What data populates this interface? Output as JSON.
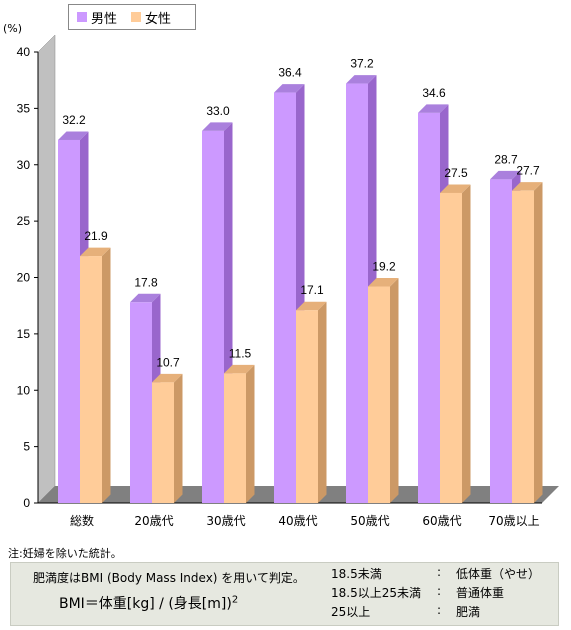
{
  "legend": {
    "items": [
      {
        "label": "男性",
        "color": "#cc99ff"
      },
      {
        "label": "女性",
        "color": "#ffcc99"
      }
    ]
  },
  "unit_label": "(%)",
  "chart_data": {
    "type": "bar",
    "categories": [
      "総数",
      "20歳代",
      "30歳代",
      "40歳代",
      "50歳代",
      "60歳代",
      "70歳以上"
    ],
    "series": [
      {
        "name": "男性",
        "values": [
          32.2,
          17.8,
          33.0,
          36.4,
          37.2,
          34.6,
          28.7
        ],
        "labels": [
          "32.2",
          "17.8",
          "33.0",
          "36.4",
          "37.2",
          "34.6",
          "28.7"
        ]
      },
      {
        "name": "女性",
        "values": [
          21.9,
          10.7,
          11.5,
          17.1,
          19.2,
          27.5,
          27.7
        ],
        "labels": [
          "21.9",
          "10.7",
          "11.5",
          "17.1",
          "19.2",
          "27.5",
          "27.7"
        ]
      }
    ],
    "yticks": [
      "0",
      "5",
      "10",
      "15",
      "20",
      "25",
      "30",
      "35",
      "40"
    ],
    "ylim": [
      0,
      40
    ],
    "grid": false,
    "legend_position": "top-left"
  },
  "colors": {
    "male_front": "#cc99ff",
    "male_side": "#9966cc",
    "male_top": "#aa80dd",
    "female_front": "#ffcc99",
    "female_side": "#cc9966",
    "female_top": "#e6b07a",
    "floor": "#808080",
    "wall": "#c0c0c0"
  },
  "note": "注:妊婦を除いた統計。",
  "bmi_box": {
    "title": "肥満度はBMI (Body Mass Index) を用いて判定。",
    "formula": "BMI＝体重[kg] / (身長[m])",
    "exponent": "2",
    "criteria": [
      {
        "range": "18.5未満",
        "sep": ":",
        "label": "低体重（やせ）"
      },
      {
        "range": "18.5以上25未満",
        "sep": ":",
        "label": "普通体重"
      },
      {
        "range": "25以上",
        "sep": ":",
        "label": "肥満"
      }
    ]
  }
}
